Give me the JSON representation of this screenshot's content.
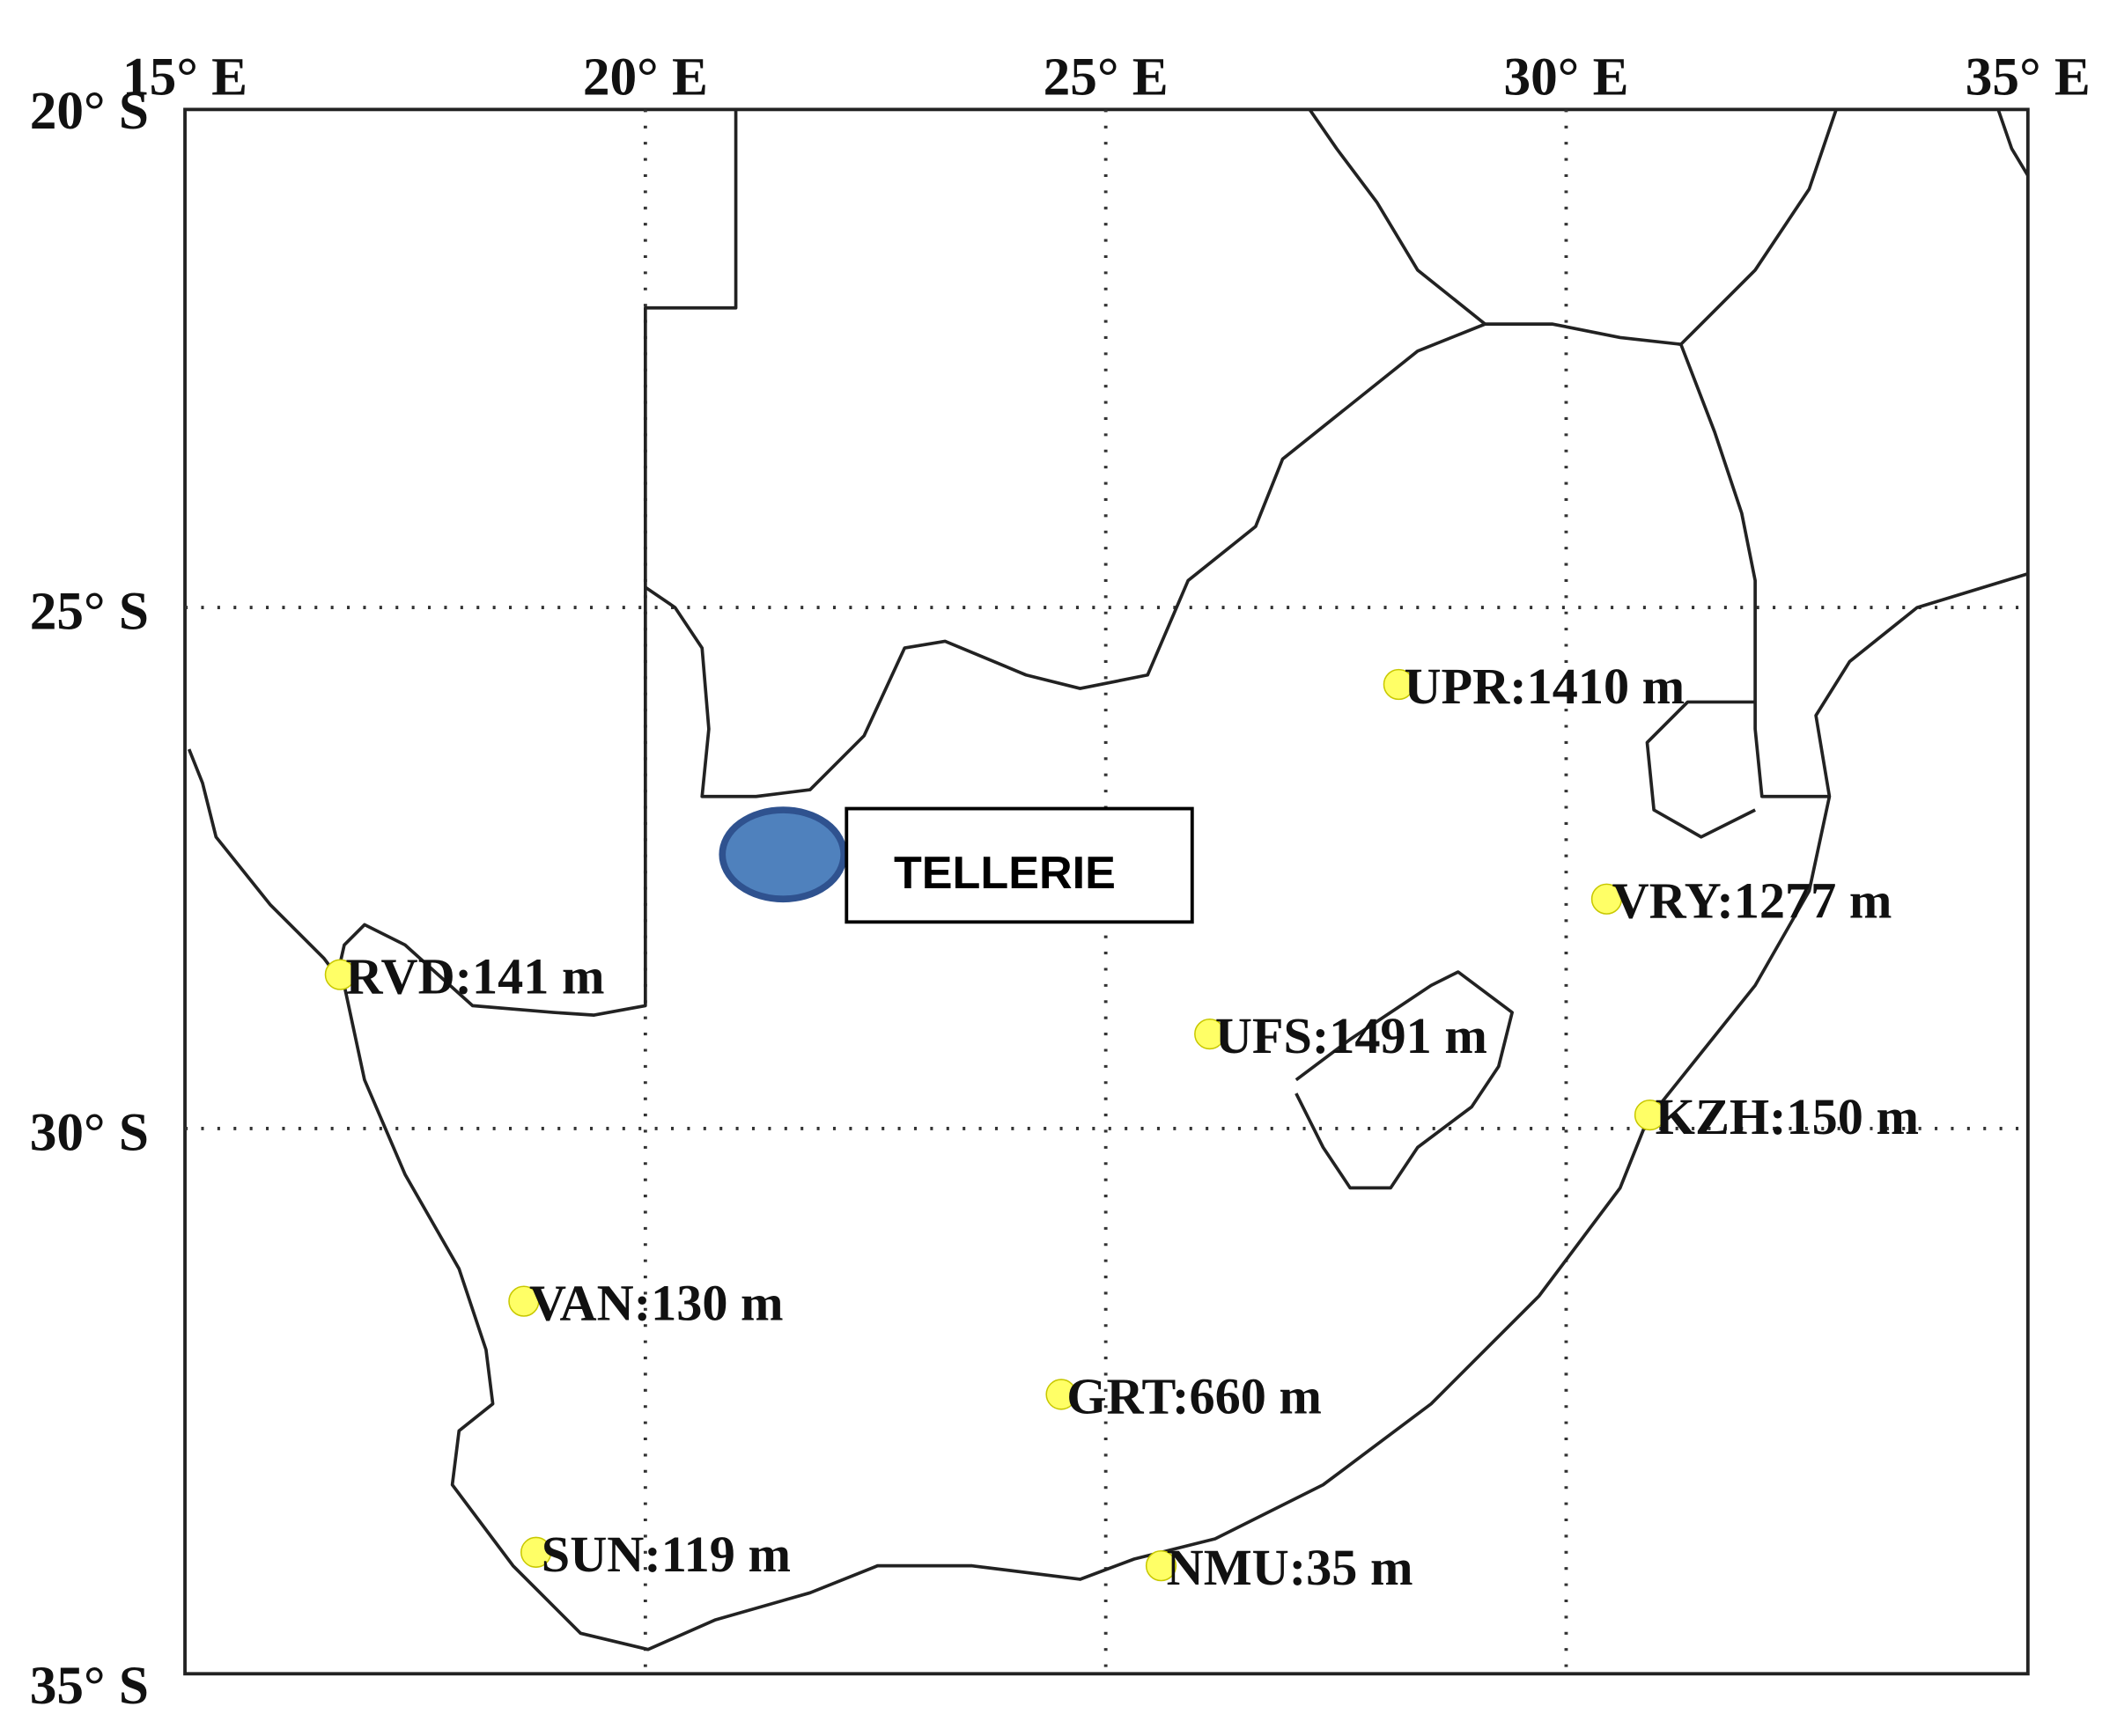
{
  "axes": {
    "x_labels": [
      "15° E",
      "20° E",
      "25° E",
      "30° E",
      "35° E"
    ],
    "y_labels": [
      "20° S",
      "25° S",
      "30° S",
      "35° S"
    ]
  },
  "stations": [
    {
      "label": "UPR:1410 m"
    },
    {
      "label": "VRY:1277 m"
    },
    {
      "label": "RVD:141 m"
    },
    {
      "label": "UFS:1491 m"
    },
    {
      "label": "KZH:150 m"
    },
    {
      "label": "VAN:130 m"
    },
    {
      "label": "GRT:660 m"
    },
    {
      "label": "SUN:119 m"
    },
    {
      "label": "NMU:35 m"
    }
  ],
  "site": {
    "label": "TELLERIE"
  }
}
